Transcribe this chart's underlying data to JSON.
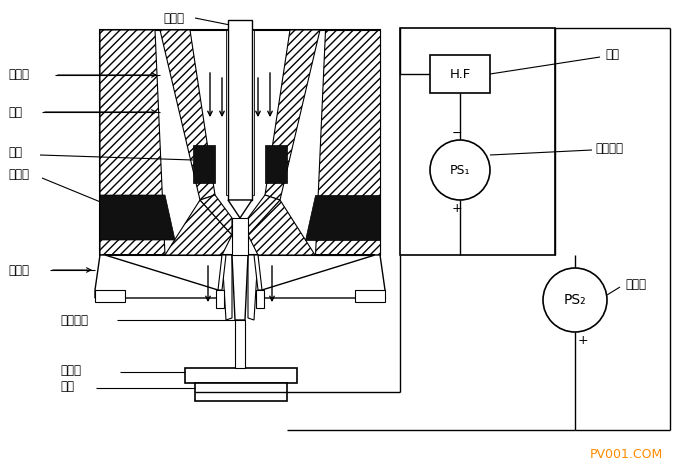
{
  "bg_color": "#ffffff",
  "labels": {
    "tungsten": "钨电极",
    "ion_gas": "离子气",
    "powder": "粉末",
    "nozzle": "喷嘴",
    "cooling": "冷却水",
    "shield": "屏蔽气",
    "plasma": "等离子体",
    "spray_layer": "喷焊层",
    "substrate": "基材",
    "hf": "高频",
    "aux_power": "辅助电源",
    "main_power": "主电源",
    "hf_box": "H.F",
    "ps1": "PS₁",
    "ps2": "PS₂"
  },
  "watermark": "PV001.COM",
  "watermark_color": "#FF8C00"
}
